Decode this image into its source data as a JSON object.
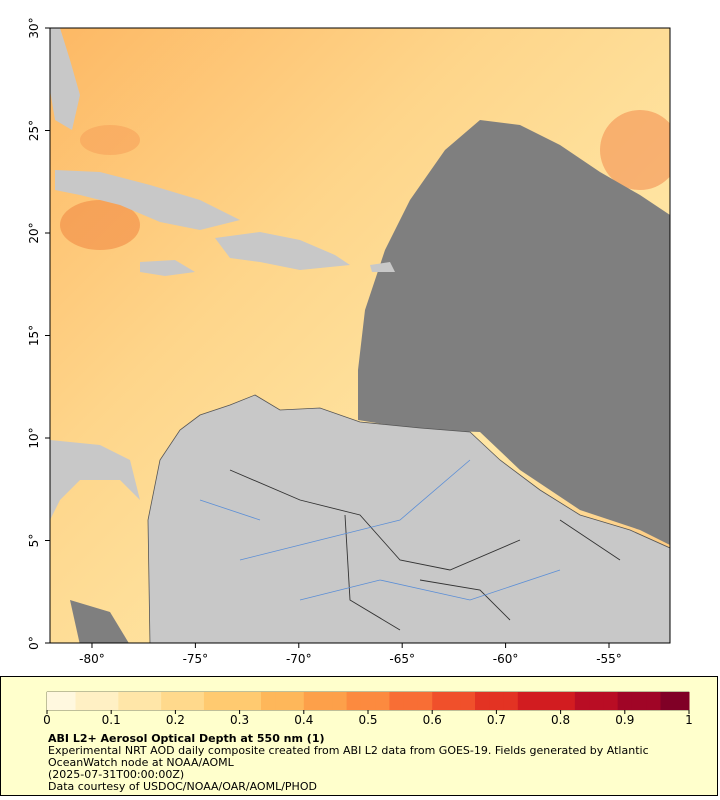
{
  "map": {
    "type": "map",
    "lonlim": [
      -82.03,
      -52.05
    ],
    "latlim": [
      0,
      30
    ],
    "xticks": [
      {
        "value": -80,
        "label": "-80°"
      },
      {
        "value": -75,
        "label": "-75°"
      },
      {
        "value": -70,
        "label": "-70°"
      },
      {
        "value": -65,
        "label": "-65°"
      },
      {
        "value": -60,
        "label": "-60°"
      },
      {
        "value": -55,
        "label": "-55°"
      }
    ],
    "yticks": [
      {
        "value": 0,
        "label": "0°"
      },
      {
        "value": 5,
        "label": "5°"
      },
      {
        "value": 10,
        "label": "10°"
      },
      {
        "value": 15,
        "label": "15°"
      },
      {
        "value": 20,
        "label": "20°"
      },
      {
        "value": 25,
        "label": "25°"
      },
      {
        "value": 30,
        "label": "30°"
      }
    ]
  },
  "colorbar": {
    "lim": [
      0,
      1
    ],
    "ticks": [
      0,
      0.1,
      0.2,
      0.3,
      0.4,
      0.5,
      0.6,
      0.7,
      0.8,
      0.9,
      1
    ],
    "colors": [
      "#fff8df",
      "#fff0c4",
      "#ffe6a8",
      "#ffd98c",
      "#ffca70",
      "#feb75a",
      "#fda04a",
      "#fc8a3f",
      "#f86e35",
      "#f0502b",
      "#e33323",
      "#d21c20",
      "#b90d24",
      "#a00526",
      "#800026"
    ]
  },
  "caption": {
    "title": "ABI L2+ Aerosol Optical Depth at 550 nm (1)",
    "description": "Experimental NRT AOD daily composite created from ABI L2 data from GOES-19. Fields generated by Atlantic OceanWatch node at NOAA/AOML",
    "time": "(2025-07-31T00:00:00Z)",
    "credit": "Data courtesy of USDOC/NOAA/OAR/AOML/PHOD"
  }
}
